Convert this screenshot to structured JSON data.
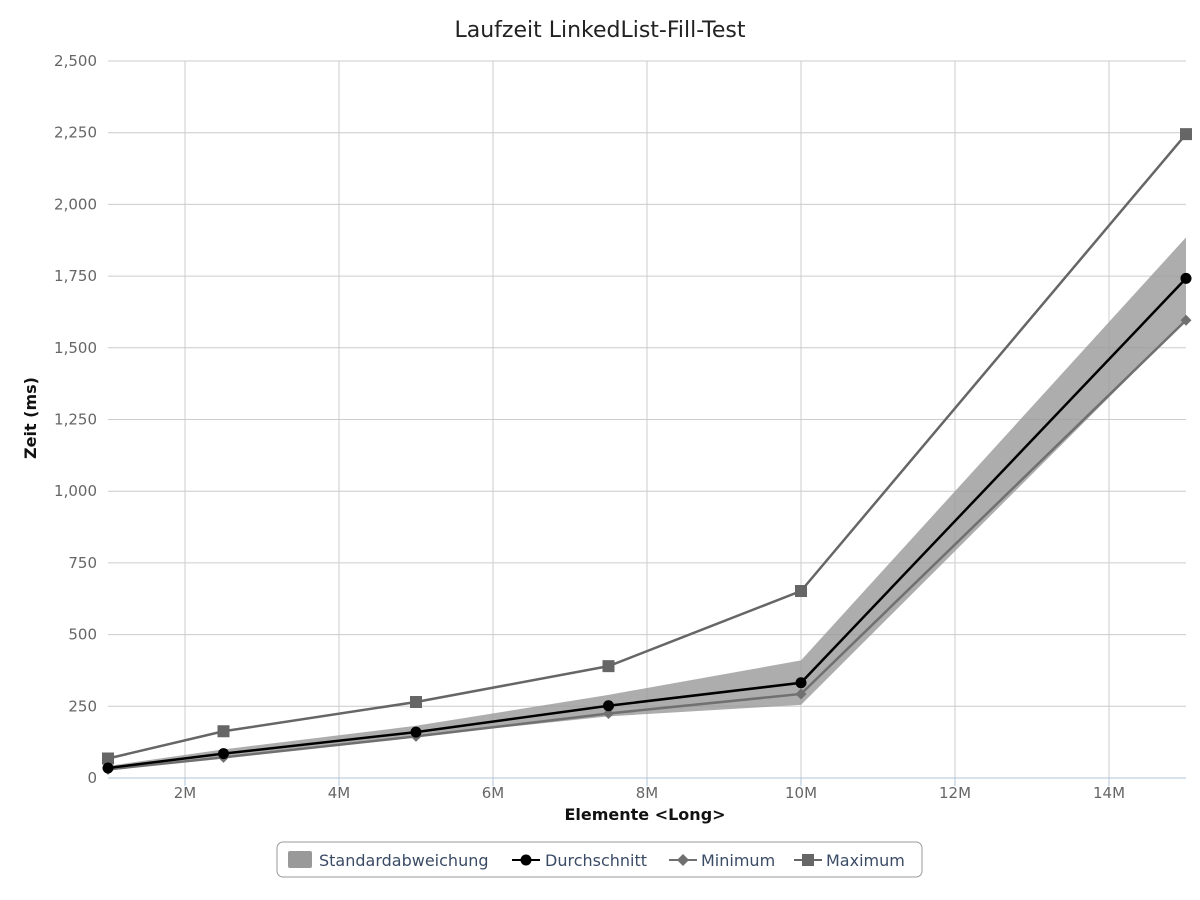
{
  "chart_data": {
    "type": "line",
    "title": "Laufzeit LinkedList-Fill-Test",
    "xlabel": "Elemente <Long>",
    "ylabel": "Zeit (ms)",
    "x": [
      1000000,
      2500000,
      5000000,
      7500000,
      10000000,
      15000000
    ],
    "xlim": [
      1000000,
      15000000
    ],
    "ylim": [
      0,
      2500
    ],
    "x_ticks": [
      2000000,
      4000000,
      6000000,
      8000000,
      10000000,
      12000000,
      14000000
    ],
    "x_tick_labels": [
      "2M",
      "4M",
      "6M",
      "8M",
      "10M",
      "12M",
      "14M"
    ],
    "y_ticks": [
      0,
      250,
      500,
      750,
      1000,
      1250,
      1500,
      1750,
      2000,
      2250,
      2500
    ],
    "y_tick_labels": [
      "0",
      "250",
      "500",
      "750",
      "1,000",
      "1,250",
      "1,500",
      "1,750",
      "2,000",
      "2,250",
      "2,500"
    ],
    "grid": true,
    "legend_position": "bottom-center",
    "band": {
      "name": "Standardabweichung",
      "color": "#999999",
      "lower": [
        30,
        72,
        145,
        215,
        255,
        1595
      ],
      "upper": [
        42,
        100,
        182,
        290,
        410,
        1885
      ]
    },
    "series": [
      {
        "name": "Durchschnitt",
        "color": "#000000",
        "marker": "circle",
        "values": [
          35,
          85,
          160,
          252,
          332,
          1742
        ]
      },
      {
        "name": "Minimum",
        "color": "#707070",
        "marker": "diamond",
        "values": [
          30,
          72,
          145,
          225,
          293,
          1596
        ]
      },
      {
        "name": "Maximum",
        "color": "#666666",
        "marker": "square",
        "values": [
          68,
          163,
          265,
          390,
          652,
          2245
        ]
      }
    ]
  }
}
